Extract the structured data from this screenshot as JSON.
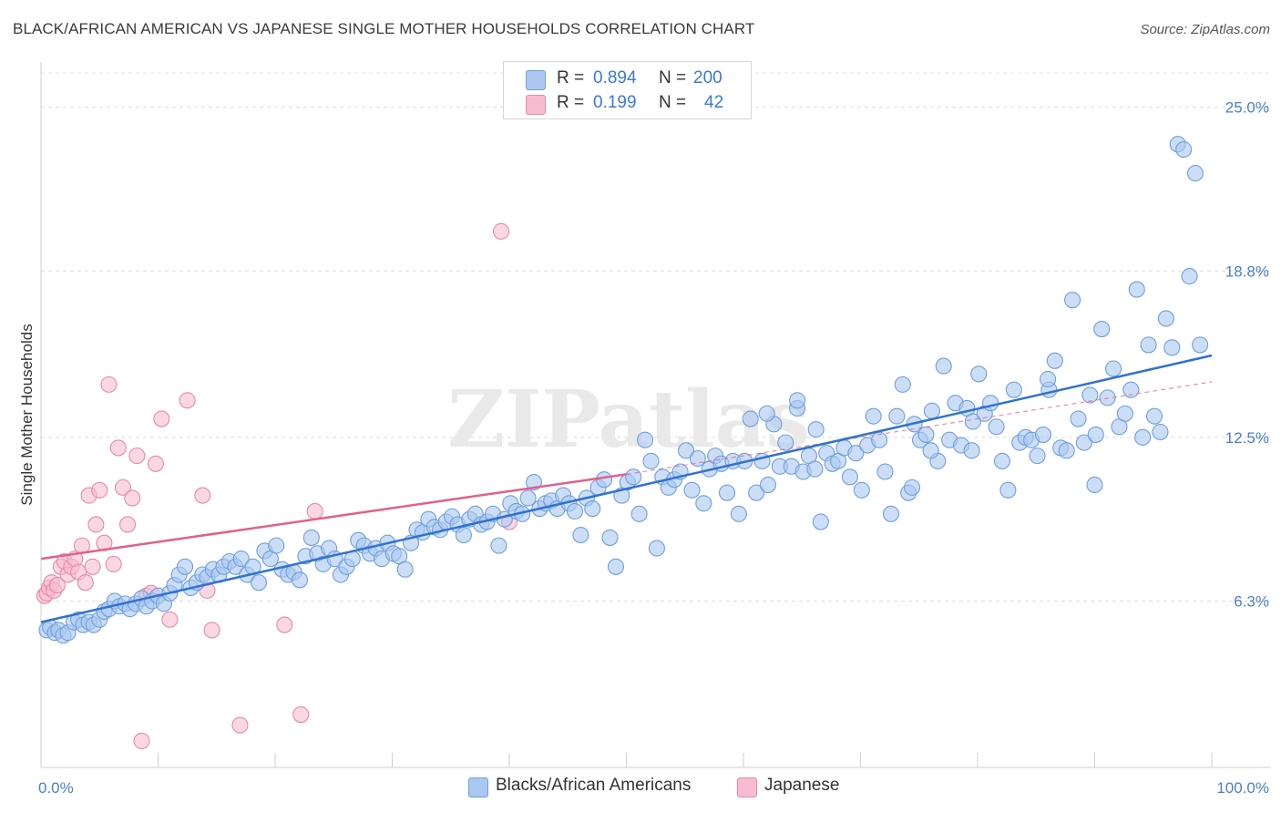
{
  "title": "BLACK/AFRICAN AMERICAN VS JAPANESE SINGLE MOTHER HOUSEHOLDS CORRELATION CHART",
  "source": "Source: ZipAtlas.com",
  "watermark": "ZIPatlas",
  "legend": {
    "r_label": "R =",
    "n_label": "N =",
    "rows": [
      {
        "r": "0.894",
        "n": "200",
        "color": "#aac8f0",
        "border": "#6e9fe0"
      },
      {
        "r": "0.199",
        "n": "42",
        "color": "#f7bcd0",
        "border": "#e889a9"
      }
    ]
  },
  "bottom_legend": [
    {
      "label": "Blacks/African Americans",
      "color": "#aac8f0",
      "border": "#6e9fe0"
    },
    {
      "label": "Japanese",
      "color": "#f7bcd0",
      "border": "#e889a9"
    }
  ],
  "chart_data": {
    "type": "scatter",
    "title": "BLACK/AFRICAN AMERICAN VS JAPANESE SINGLE MOTHER HOUSEHOLDS CORRELATION CHART",
    "xlabel": "",
    "ylabel": "Single Mother Households",
    "xlim": [
      0,
      100
    ],
    "ylim": [
      0,
      26.3
    ],
    "x_tick_labels": [
      "0.0%",
      "100.0%"
    ],
    "y_ticks": [
      6.3,
      12.5,
      18.8,
      25.0
    ],
    "y_tick_labels": [
      "6.3%",
      "12.5%",
      "18.8%",
      "25.0%"
    ],
    "grid": "horizontal dashed",
    "legend_position": "top-center",
    "series": [
      {
        "name": "Blacks/African Americans",
        "color": "#6e9fe0",
        "fill": "#aac8f0",
        "line_color": "#2f72d0",
        "r": 0.894,
        "n": 200,
        "trend": {
          "x0": 0,
          "y0": 5.5,
          "x1": 100,
          "y1": 15.6
        },
        "points": [
          [
            0.5,
            5.2
          ],
          [
            0.8,
            5.3
          ],
          [
            1.2,
            5.1
          ],
          [
            1.5,
            5.2
          ],
          [
            1.9,
            5.0
          ],
          [
            2.3,
            5.1
          ],
          [
            2.8,
            5.5
          ],
          [
            3.2,
            5.6
          ],
          [
            3.6,
            5.4
          ],
          [
            4.1,
            5.5
          ],
          [
            4.5,
            5.4
          ],
          [
            5.0,
            5.6
          ],
          [
            5.4,
            5.9
          ],
          [
            5.8,
            6.0
          ],
          [
            6.3,
            6.3
          ],
          [
            6.7,
            6.1
          ],
          [
            7.2,
            6.2
          ],
          [
            7.6,
            6.0
          ],
          [
            8.1,
            6.2
          ],
          [
            8.6,
            6.4
          ],
          [
            9.0,
            6.1
          ],
          [
            9.5,
            6.3
          ],
          [
            10.0,
            6.5
          ],
          [
            10.5,
            6.2
          ],
          [
            11.0,
            6.6
          ],
          [
            11.4,
            6.9
          ],
          [
            11.8,
            7.3
          ],
          [
            12.3,
            7.6
          ],
          [
            12.8,
            6.8
          ],
          [
            13.3,
            7.0
          ],
          [
            13.8,
            7.3
          ],
          [
            14.2,
            7.2
          ],
          [
            14.7,
            7.5
          ],
          [
            15.2,
            7.3
          ],
          [
            15.6,
            7.6
          ],
          [
            16.1,
            7.8
          ],
          [
            16.6,
            7.6
          ],
          [
            17.1,
            7.9
          ],
          [
            17.6,
            7.3
          ],
          [
            18.1,
            7.6
          ],
          [
            18.6,
            7.0
          ],
          [
            19.1,
            8.2
          ],
          [
            19.6,
            7.9
          ],
          [
            20.1,
            8.4
          ],
          [
            20.6,
            7.5
          ],
          [
            21.1,
            7.3
          ],
          [
            21.6,
            7.4
          ],
          [
            22.1,
            7.1
          ],
          [
            22.6,
            8.0
          ],
          [
            23.1,
            8.7
          ],
          [
            23.6,
            8.1
          ],
          [
            24.1,
            7.7
          ],
          [
            24.6,
            8.3
          ],
          [
            25.1,
            7.9
          ],
          [
            25.6,
            7.3
          ],
          [
            26.1,
            7.6
          ],
          [
            26.6,
            7.9
          ],
          [
            27.1,
            8.6
          ],
          [
            27.6,
            8.4
          ],
          [
            28.1,
            8.1
          ],
          [
            28.6,
            8.3
          ],
          [
            29.1,
            7.9
          ],
          [
            29.6,
            8.5
          ],
          [
            30.1,
            8.1
          ],
          [
            30.6,
            8.0
          ],
          [
            31.1,
            7.5
          ],
          [
            31.6,
            8.5
          ],
          [
            32.1,
            9.0
          ],
          [
            32.6,
            8.9
          ],
          [
            33.1,
            9.4
          ],
          [
            33.6,
            9.1
          ],
          [
            34.1,
            9.0
          ],
          [
            34.6,
            9.3
          ],
          [
            35.1,
            9.5
          ],
          [
            35.6,
            9.2
          ],
          [
            36.1,
            8.8
          ],
          [
            36.6,
            9.4
          ],
          [
            37.1,
            9.6
          ],
          [
            37.6,
            9.2
          ],
          [
            38.1,
            9.3
          ],
          [
            38.6,
            9.6
          ],
          [
            39.1,
            8.4
          ],
          [
            39.6,
            9.4
          ],
          [
            40.1,
            10.0
          ],
          [
            40.6,
            9.7
          ],
          [
            41.1,
            9.6
          ],
          [
            41.6,
            10.2
          ],
          [
            42.1,
            10.8
          ],
          [
            42.6,
            9.8
          ],
          [
            43.1,
            10.0
          ],
          [
            43.6,
            10.1
          ],
          [
            44.1,
            9.8
          ],
          [
            44.6,
            10.3
          ],
          [
            45.1,
            10.0
          ],
          [
            45.6,
            9.7
          ],
          [
            46.1,
            8.8
          ],
          [
            46.6,
            10.2
          ],
          [
            47.1,
            9.8
          ],
          [
            47.6,
            10.6
          ],
          [
            48.1,
            10.9
          ],
          [
            48.6,
            8.7
          ],
          [
            49.1,
            7.6
          ],
          [
            49.6,
            10.3
          ],
          [
            50.1,
            10.8
          ],
          [
            50.6,
            11.0
          ],
          [
            51.1,
            9.6
          ],
          [
            51.6,
            12.4
          ],
          [
            52.1,
            11.6
          ],
          [
            52.6,
            8.3
          ],
          [
            53.1,
            11.0
          ],
          [
            53.6,
            10.6
          ],
          [
            54.1,
            10.9
          ],
          [
            54.6,
            11.2
          ],
          [
            55.1,
            12.0
          ],
          [
            55.6,
            10.5
          ],
          [
            56.1,
            11.7
          ],
          [
            56.6,
            10.0
          ],
          [
            57.1,
            11.3
          ],
          [
            57.6,
            11.8
          ],
          [
            58.1,
            11.5
          ],
          [
            58.6,
            10.4
          ],
          [
            59.1,
            11.6
          ],
          [
            59.6,
            9.6
          ],
          [
            60.1,
            11.6
          ],
          [
            60.6,
            13.2
          ],
          [
            61.1,
            10.4
          ],
          [
            61.6,
            11.6
          ],
          [
            62.1,
            10.7
          ],
          [
            62.6,
            13.0
          ],
          [
            63.1,
            11.4
          ],
          [
            63.6,
            12.3
          ],
          [
            64.1,
            11.4
          ],
          [
            64.6,
            13.6
          ],
          [
            65.1,
            11.2
          ],
          [
            65.6,
            11.8
          ],
          [
            66.1,
            11.3
          ],
          [
            66.6,
            9.3
          ],
          [
            67.1,
            11.9
          ],
          [
            67.6,
            11.5
          ],
          [
            68.1,
            11.6
          ],
          [
            68.6,
            12.1
          ],
          [
            69.1,
            11.0
          ],
          [
            69.6,
            11.9
          ],
          [
            70.1,
            10.5
          ],
          [
            70.6,
            12.2
          ],
          [
            71.1,
            13.3
          ],
          [
            71.6,
            12.4
          ],
          [
            72.1,
            11.2
          ],
          [
            72.6,
            9.6
          ],
          [
            73.1,
            13.3
          ],
          [
            73.6,
            14.5
          ],
          [
            74.1,
            10.4
          ],
          [
            74.6,
            13.0
          ],
          [
            75.1,
            12.4
          ],
          [
            75.6,
            12.6
          ],
          [
            76.1,
            13.5
          ],
          [
            76.6,
            11.6
          ],
          [
            77.1,
            15.2
          ],
          [
            77.6,
            12.4
          ],
          [
            78.1,
            13.8
          ],
          [
            78.6,
            12.2
          ],
          [
            79.1,
            13.6
          ],
          [
            79.6,
            13.1
          ],
          [
            80.1,
            14.9
          ],
          [
            80.6,
            13.4
          ],
          [
            81.1,
            13.8
          ],
          [
            81.6,
            12.9
          ],
          [
            82.1,
            11.6
          ],
          [
            82.6,
            10.5
          ],
          [
            83.1,
            14.3
          ],
          [
            83.6,
            12.3
          ],
          [
            84.1,
            12.5
          ],
          [
            84.6,
            12.4
          ],
          [
            85.1,
            11.8
          ],
          [
            85.6,
            12.6
          ],
          [
            86.1,
            14.3
          ],
          [
            86.6,
            15.4
          ],
          [
            87.1,
            12.1
          ],
          [
            87.6,
            12.0
          ],
          [
            88.1,
            17.7
          ],
          [
            88.6,
            13.2
          ],
          [
            89.1,
            12.3
          ],
          [
            89.6,
            14.1
          ],
          [
            90.1,
            12.6
          ],
          [
            90.6,
            16.6
          ],
          [
            91.1,
            14.0
          ],
          [
            91.6,
            15.1
          ],
          [
            92.1,
            12.9
          ],
          [
            92.6,
            13.4
          ],
          [
            93.1,
            14.3
          ],
          [
            93.6,
            18.1
          ],
          [
            94.1,
            12.5
          ],
          [
            94.6,
            16.0
          ],
          [
            95.1,
            13.3
          ],
          [
            95.6,
            12.7
          ],
          [
            96.1,
            17.0
          ],
          [
            96.6,
            15.9
          ],
          [
            97.1,
            23.6
          ],
          [
            97.6,
            23.4
          ],
          [
            98.1,
            18.6
          ],
          [
            98.6,
            22.5
          ],
          [
            99.0,
            16.0
          ],
          [
            90.0,
            10.7
          ],
          [
            86.0,
            14.7
          ],
          [
            79.5,
            12.0
          ],
          [
            76.0,
            12.0
          ],
          [
            74.4,
            10.6
          ],
          [
            66.2,
            12.8
          ],
          [
            62.0,
            13.4
          ],
          [
            64.6,
            13.9
          ]
        ]
      },
      {
        "name": "Japanese",
        "color": "#e889a9",
        "fill": "#f7bcd0",
        "line_color": "#e0608c",
        "r": 0.199,
        "n": 42,
        "trend": {
          "x0": 0,
          "y0": 7.9,
          "x1": 50,
          "y1": 11.1
        },
        "trend_dashed": {
          "x0": 50,
          "y0": 11.1,
          "x1": 100,
          "y1": 14.6
        },
        "points": [
          [
            0.3,
            6.5
          ],
          [
            0.5,
            6.6
          ],
          [
            0.7,
            6.8
          ],
          [
            0.9,
            7.0
          ],
          [
            1.1,
            6.7
          ],
          [
            1.4,
            6.9
          ],
          [
            1.7,
            7.6
          ],
          [
            2.0,
            7.8
          ],
          [
            2.3,
            7.3
          ],
          [
            2.6,
            7.6
          ],
          [
            2.9,
            7.9
          ],
          [
            3.2,
            7.4
          ],
          [
            3.5,
            8.4
          ],
          [
            3.8,
            7.0
          ],
          [
            4.1,
            10.3
          ],
          [
            4.4,
            7.6
          ],
          [
            4.7,
            9.2
          ],
          [
            5.0,
            10.5
          ],
          [
            5.4,
            8.5
          ],
          [
            5.8,
            14.5
          ],
          [
            6.2,
            7.7
          ],
          [
            6.6,
            12.1
          ],
          [
            7.0,
            10.6
          ],
          [
            7.4,
            9.2
          ],
          [
            7.8,
            10.2
          ],
          [
            8.2,
            11.8
          ],
          [
            8.6,
            1.0
          ],
          [
            9.0,
            6.5
          ],
          [
            9.4,
            6.6
          ],
          [
            9.8,
            11.5
          ],
          [
            10.3,
            13.2
          ],
          [
            11.0,
            5.6
          ],
          [
            12.5,
            13.9
          ],
          [
            13.8,
            10.3
          ],
          [
            14.2,
            6.7
          ],
          [
            14.6,
            5.2
          ],
          [
            17.0,
            1.6
          ],
          [
            20.8,
            5.4
          ],
          [
            22.2,
            2.0
          ],
          [
            23.4,
            9.7
          ],
          [
            39.3,
            20.3
          ],
          [
            40.0,
            9.3
          ]
        ]
      }
    ]
  }
}
